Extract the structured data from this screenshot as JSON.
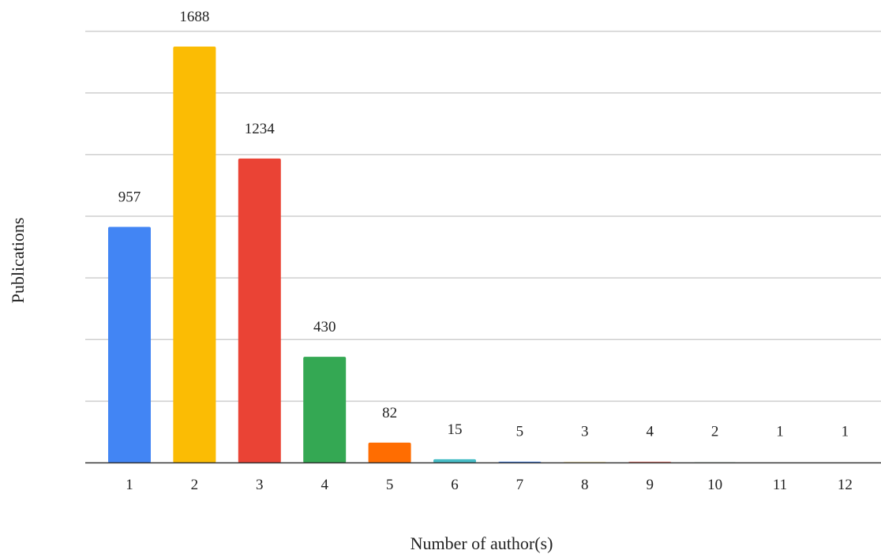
{
  "chart_data": {
    "type": "bar",
    "title": "",
    "xlabel": "Number of author(s)",
    "ylabel": "Publications",
    "categories": [
      "1",
      "2",
      "3",
      "4",
      "5",
      "6",
      "7",
      "8",
      "9",
      "10",
      "11",
      "12"
    ],
    "values": [
      957,
      1688,
      1234,
      430,
      82,
      15,
      5,
      3,
      4,
      2,
      1,
      1
    ],
    "data_labels": [
      "957",
      "1688",
      "1234",
      "430",
      "82",
      "15",
      "5",
      "3",
      "4",
      "2",
      "1",
      "1"
    ],
    "colors": [
      "#4285F4",
      "#FBBC04",
      "#EA4335",
      "#34A853",
      "#FF6D01",
      "#46BDC6",
      "#4285F4",
      "#FBBC04",
      "#EA4335",
      "#34A853",
      "#FF6D01",
      "#46BDC6"
    ],
    "ylim": [
      0,
      1750
    ],
    "grid_step": 250,
    "grid": true,
    "y_tick_labels_shown": false,
    "legend": "none"
  }
}
